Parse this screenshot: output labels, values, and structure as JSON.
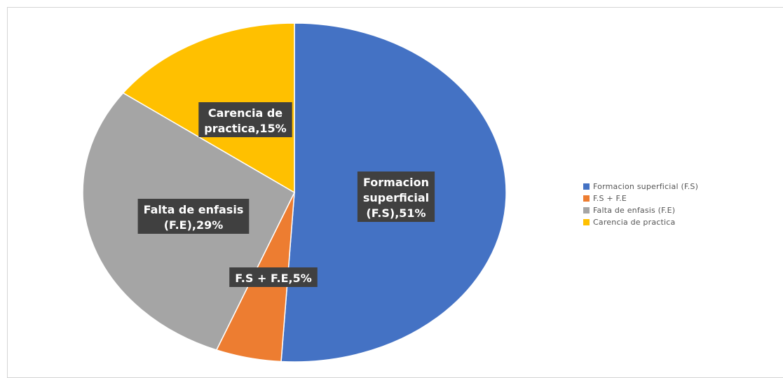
{
  "chart_data": {
    "type": "pie",
    "title": "",
    "slices": [
      {
        "label": "Formacion superficial (F.S)",
        "value": 51,
        "color": "#4472c4",
        "data_label": [
          "Formacion",
          "superficial",
          "(F.S),51%"
        ]
      },
      {
        "label": "F.S + F.E",
        "value": 5,
        "color": "#ed7d31",
        "data_label": [
          "F.S + F.E,5%"
        ]
      },
      {
        "label": "Falta de enfasis (F.E)",
        "value": 29,
        "color": "#a5a5a5",
        "data_label": [
          "Falta de enfasis",
          "(F.E),29%"
        ]
      },
      {
        "label": "Carencia de practica",
        "value": 15,
        "color": "#ffc000",
        "data_label": [
          "Carencia de",
          "practica,15%"
        ]
      }
    ],
    "legend": {
      "position": "right",
      "entries": [
        "Formacion superficial (F.S)",
        "F.S + F.E",
        "Falta de enfasis (F.E)",
        "Carencia de practica"
      ]
    }
  }
}
